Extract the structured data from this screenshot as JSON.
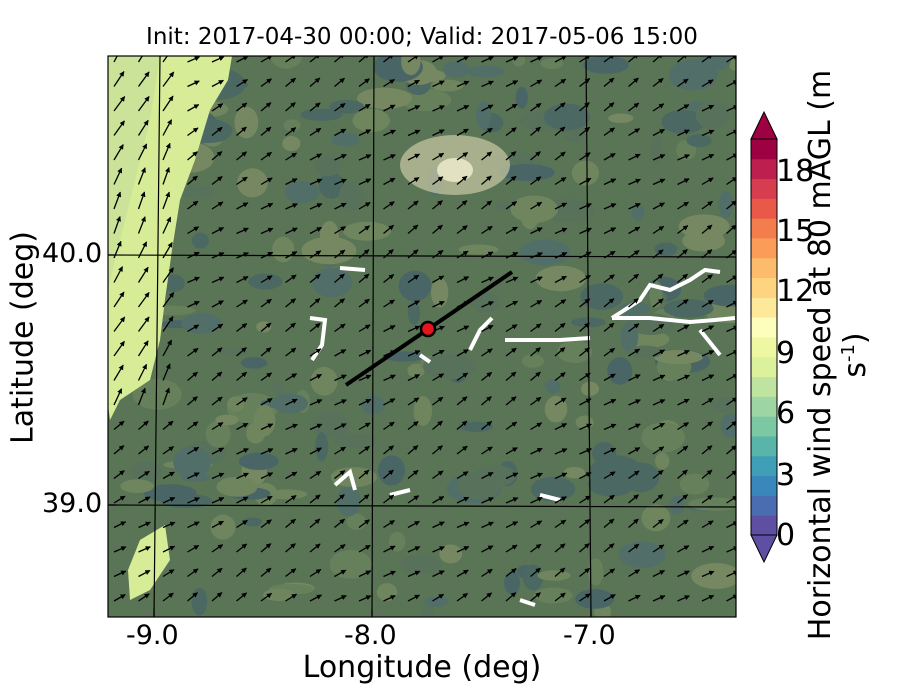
{
  "title": "Init: 2017-04-30 00:00; Valid: 2017-05-06 15:00",
  "axes": {
    "xlabel": "Longitude (deg)",
    "ylabel": "Latitude (deg)",
    "xticks": [
      "-9.0",
      "-8.0",
      "-7.0"
    ],
    "yticks": [
      "40.0",
      "39.0"
    ]
  },
  "colorbar": {
    "label": "Horizontal wind speed at 80 mAGL (m s",
    "label_sup": "-1",
    "label_end": ")",
    "ticks": [
      "18",
      "15",
      "12",
      "9",
      "6",
      "3",
      "0"
    ],
    "colors": [
      "#5e4fa2",
      "#4a6db1",
      "#3a87bc",
      "#3f9fb6",
      "#59b4aa",
      "#7cc7a4",
      "#9dd5a4",
      "#bfe4a0",
      "#dbf19b",
      "#eef7a1",
      "#fdfdbc",
      "#fee99a",
      "#fed480",
      "#fdbc6c",
      "#fb9d59",
      "#f47d4d",
      "#e85a47",
      "#d63e4f",
      "#bd1f4f",
      "#9e0142"
    ]
  },
  "map_overlay": {
    "site_marker_color": "#e8141c",
    "transect_color": "#000000"
  }
}
